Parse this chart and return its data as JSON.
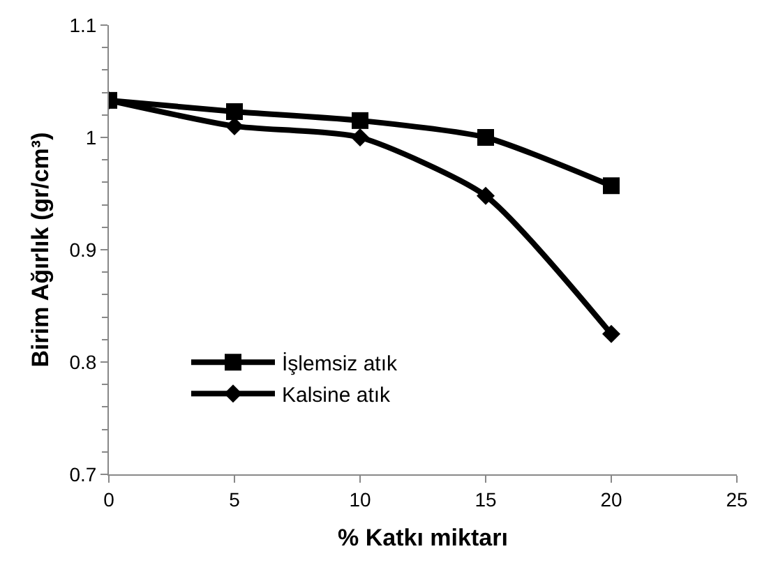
{
  "chart_data": {
    "type": "line",
    "xlabel": "% Katkı miktarı",
    "ylabel": "Birim Ağırlık (gr/cm³)",
    "x": [
      0,
      5,
      10,
      15,
      20
    ],
    "series": [
      {
        "name": "İşlemsiz atık",
        "color": "#000000",
        "marker": "square",
        "values": [
          1.033,
          1.023,
          1.015,
          1.0,
          0.957
        ]
      },
      {
        "name": "Kalsine atık",
        "color": "#000000",
        "marker": "diamond",
        "values": [
          1.033,
          1.01,
          1.0,
          0.948,
          0.825
        ]
      }
    ],
    "xlim": [
      0,
      25
    ],
    "xticks": [
      0,
      5,
      10,
      15,
      20,
      25
    ],
    "ylim": [
      0.7,
      1.1
    ],
    "yticks": [
      {
        "value": 0.7,
        "label": "0.7"
      },
      {
        "value": 0.8,
        "label": "0.8"
      },
      {
        "value": 0.9,
        "label": "0.9"
      },
      {
        "value": 1.0,
        "label": "1"
      },
      {
        "value": 1.1,
        "label": "1.1"
      }
    ],
    "grid": false,
    "legend": "bottom left",
    "line_style": "solid"
  }
}
